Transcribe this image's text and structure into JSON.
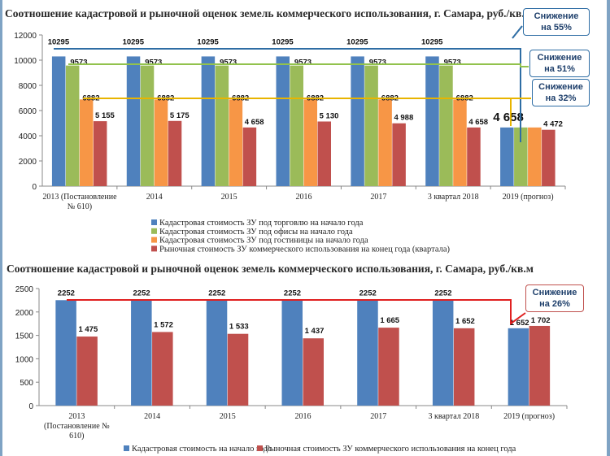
{
  "chart_data": [
    {
      "type": "bar",
      "title": "Соотношение кадастровой и рыночной оценок земель коммерческого использования,  г. Самара, руб./кв.м",
      "ylim": [
        0,
        12000
      ],
      "yticks": [
        0,
        2000,
        4000,
        6000,
        8000,
        10000,
        12000
      ],
      "categories": [
        "2013 (Постановление\n№ 610)",
        "2014",
        "2015",
        "2016",
        "2017",
        "3 квартал 2018",
        "2019 (прогноз)"
      ],
      "series": [
        {
          "name": "Кадастровая стоимость ЗУ под торговлю на начало года",
          "color": "#4f81bd",
          "values": [
            10295,
            10295,
            10295,
            10295,
            10295,
            10295,
            4658
          ],
          "labels": [
            "10295",
            "10295",
            "10295",
            "10295",
            "10295",
            "10295",
            "4 658"
          ]
        },
        {
          "name": "Кадастровая стоимость ЗУ под офисы на начало года",
          "color": "#9bbb59",
          "values": [
            9573,
            9573,
            9573,
            9573,
            9573,
            9573,
            4658
          ],
          "labels": [
            "9573",
            "9573",
            "9573",
            "9573",
            "9573",
            "9573",
            ""
          ]
        },
        {
          "name": "Кадастровая стоимость ЗУ под гостиницы на начало года",
          "color": "#f79646",
          "values": [
            6882,
            6882,
            6882,
            6882,
            6882,
            6882,
            4658
          ],
          "labels": [
            "6882",
            "6882",
            "6882",
            "6882",
            "6882",
            "6882",
            ""
          ]
        },
        {
          "name": "Рыночная стоимость ЗУ коммерческого использования на конец года (квартала)",
          "color": "#c0504d",
          "values": [
            5155,
            5175,
            4658,
            5130,
            4988,
            4658,
            4472
          ],
          "labels": [
            "5 155",
            "5 175",
            "4 658",
            "5 130",
            "4 988",
            "4 658",
            "4 472"
          ]
        }
      ],
      "annotations": [
        {
          "text": "Снижение на 55%",
          "color": "#2e6da4"
        },
        {
          "text": "Снижение на 51%",
          "color": "#92c24d"
        },
        {
          "text": "Снижение на 32%",
          "color": "#e8b400"
        }
      ]
    },
    {
      "type": "bar",
      "title": "Соотношение кадастровой и рыночной оценок земель коммерческого использования,  г. Самара, руб./кв.м",
      "ylim": [
        0,
        2500
      ],
      "yticks": [
        0,
        500,
        1000,
        1500,
        2000,
        2500
      ],
      "categories": [
        "2013\n(Постановление №\n610)",
        "2014",
        "2015",
        "2016",
        "2017",
        "3 квартал 2018",
        "2019 (прогноз)"
      ],
      "series": [
        {
          "name": "Кадастровая стоимость на начало года",
          "color": "#4f81bd",
          "values": [
            2252,
            2252,
            2252,
            2252,
            2252,
            2252,
            1652
          ],
          "labels": [
            "2252",
            "2252",
            "2252",
            "2252",
            "2252",
            "2252",
            "1 652"
          ]
        },
        {
          "name": "Рыночная стоимость ЗУ коммерческого использования на конец года",
          "color": "#c0504d",
          "values": [
            1475,
            1572,
            1533,
            1437,
            1665,
            1652,
            1702
          ],
          "labels": [
            "1 475",
            "1 572",
            "1 533",
            "1 437",
            "1 665",
            "1 652",
            "1 702"
          ]
        }
      ],
      "annotations": [
        {
          "text": "Снижение на 26%",
          "color": "#e02020"
        }
      ]
    }
  ]
}
